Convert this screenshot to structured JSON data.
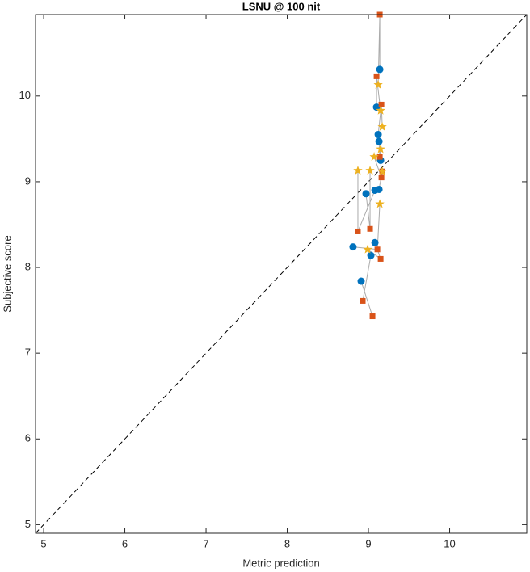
{
  "chart_data": {
    "type": "scatter",
    "title": "LSNU @ 100 nit",
    "x_label": "Metric prediction",
    "y_label": "Subjective score",
    "xlim": [
      4.9,
      10.95
    ],
    "ylim": [
      4.9,
      10.95
    ],
    "xticks": [
      5,
      6,
      7,
      8,
      9,
      10
    ],
    "yticks": [
      5,
      6,
      7,
      8,
      9,
      10
    ],
    "identity_line": true,
    "series": [
      {
        "color": "#0072bd",
        "marker": "circle",
        "x": [
          9.14,
          9.1,
          9.12,
          9.13,
          9.15,
          9.13,
          9.08,
          8.97,
          8.81,
          9.08,
          9.03,
          8.91
        ],
        "values": [
          10.31,
          9.87,
          9.55,
          9.47,
          9.25,
          8.91,
          8.9,
          8.86,
          8.24,
          8.29,
          8.14,
          7.84
        ]
      },
      {
        "color": "#d95319",
        "marker": "square",
        "x": [
          9.14,
          9.1,
          9.16,
          9.14,
          9.16,
          9.17,
          8.87,
          9.02,
          9.11,
          9.15,
          8.93,
          9.05
        ],
        "values": [
          10.95,
          10.23,
          9.9,
          9.29,
          9.05,
          9.12,
          8.42,
          8.45,
          8.21,
          8.1,
          7.61,
          7.43
        ]
      },
      {
        "color": "#edb120",
        "marker": "star",
        "x": [
          9.12,
          9.15,
          9.17,
          9.15,
          9.07,
          9.17,
          8.87,
          9.02,
          9.14,
          8.99
        ],
        "values": [
          10.13,
          9.83,
          9.64,
          9.38,
          9.29,
          9.12,
          9.13,
          9.13,
          8.74,
          8.21
        ]
      }
    ]
  }
}
